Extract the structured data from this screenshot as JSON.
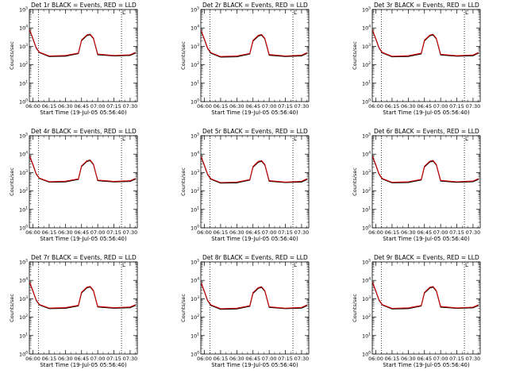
{
  "figure": {
    "x_tick_labels": [
      "06:00",
      "06:15",
      "06:30",
      "06:45",
      "07:00",
      "07:15",
      "07:30"
    ],
    "y_tick_exponents": [
      "0",
      "1",
      "2",
      "3",
      "4",
      "5"
    ],
    "y_tick_base": "10",
    "xlabel": "Start Time (19-Jul-05 05:56:40)",
    "ylabel": "Counts/sec",
    "colors": {
      "events": "#000000",
      "lld": "#d00000"
    }
  },
  "chart_data": [
    {
      "type": "line",
      "title": "Det 1r BLACK = Events, RED = LLD",
      "xlabel": "Start Time (19-Jul-05 05:56:40)",
      "ylabel": "Counts/sec",
      "y_log": true,
      "ylim": [
        1,
        100000
      ],
      "xlim": [
        "05:56:40",
        "07:36:40"
      ],
      "vlines": [
        "06:05",
        "07:22"
      ],
      "corner_mark": "L",
      "x": [
        "05:57",
        "06:00",
        "06:03",
        "06:06",
        "06:15",
        "06:30",
        "06:42",
        "06:45",
        "06:50",
        "06:53",
        "06:56",
        "07:00",
        "07:15",
        "07:30",
        "07:35"
      ],
      "series": [
        {
          "name": "Events",
          "values": [
            7000,
            2500,
            800,
            450,
            280,
            290,
            400,
            2000,
            3800,
            4200,
            2600,
            350,
            300,
            320,
            430
          ]
        },
        {
          "name": "LLD",
          "values": [
            7500,
            2700,
            850,
            480,
            300,
            320,
            430,
            2200,
            4200,
            4600,
            2800,
            380,
            320,
            350,
            470
          ]
        }
      ]
    },
    {
      "type": "line",
      "title": "Det 2r BLACK = Events, RED = LLD",
      "xlabel": "Start Time (19-Jul-05 05:56:40)",
      "ylabel": "Counts/sec",
      "y_log": true,
      "ylim": [
        1,
        100000
      ],
      "xlim": [
        "05:56:40",
        "07:36:40"
      ],
      "vlines": [
        "06:05",
        "07:22"
      ],
      "corner_mark": "L",
      "x": [
        "05:57",
        "06:00",
        "06:03",
        "06:06",
        "06:15",
        "06:30",
        "06:42",
        "06:45",
        "06:50",
        "06:53",
        "06:56",
        "07:00",
        "07:15",
        "07:30",
        "07:35"
      ],
      "series": [
        {
          "name": "Events",
          "values": [
            6500,
            2300,
            750,
            420,
            260,
            270,
            380,
            1900,
            3600,
            4000,
            2500,
            330,
            280,
            300,
            410
          ]
        },
        {
          "name": "LLD",
          "values": [
            7000,
            2500,
            800,
            450,
            280,
            300,
            410,
            2100,
            4000,
            4400,
            2700,
            360,
            300,
            330,
            450
          ]
        }
      ]
    },
    {
      "type": "line",
      "title": "Det 3r BLACK = Events, RED = LLD",
      "xlabel": "Start Time (19-Jul-05 05:56:40)",
      "ylabel": "Counts/sec",
      "y_log": true,
      "ylim": [
        1,
        100000
      ],
      "xlim": [
        "05:56:40",
        "07:36:40"
      ],
      "vlines": [
        "06:05",
        "07:22"
      ],
      "corner_mark": "L",
      "x": [
        "05:57",
        "06:00",
        "06:03",
        "06:06",
        "06:15",
        "06:30",
        "06:42",
        "06:45",
        "06:50",
        "06:53",
        "06:56",
        "07:00",
        "07:15",
        "07:30",
        "07:35"
      ],
      "series": [
        {
          "name": "Events",
          "values": [
            6800,
            2400,
            780,
            440,
            270,
            280,
            390,
            1950,
            3700,
            4100,
            2550,
            340,
            290,
            310,
            420
          ]
        },
        {
          "name": "LLD",
          "values": [
            7300,
            2600,
            830,
            470,
            290,
            310,
            420,
            2150,
            4100,
            4500,
            2750,
            370,
            310,
            340,
            460
          ]
        }
      ]
    },
    {
      "type": "line",
      "title": "Det 4r BLACK = Events, RED = LLD",
      "xlabel": "Start Time (19-Jul-05 05:56:40)",
      "ylabel": "Counts/sec",
      "y_log": true,
      "ylim": [
        1,
        100000
      ],
      "xlim": [
        "05:56:40",
        "07:36:40"
      ],
      "vlines": [
        "06:05",
        "07:22"
      ],
      "corner_mark": "L",
      "x": [
        "05:57",
        "06:00",
        "06:03",
        "06:06",
        "06:15",
        "06:30",
        "06:42",
        "06:45",
        "06:50",
        "06:53",
        "06:56",
        "07:00",
        "07:15",
        "07:30",
        "07:35"
      ],
      "series": [
        {
          "name": "Events",
          "values": [
            7200,
            2600,
            820,
            470,
            300,
            310,
            420,
            2100,
            4000,
            4400,
            2700,
            360,
            310,
            330,
            440
          ]
        },
        {
          "name": "LLD",
          "values": [
            7700,
            2800,
            870,
            500,
            320,
            340,
            450,
            2300,
            4400,
            4800,
            2900,
            390,
            330,
            360,
            480
          ]
        }
      ]
    },
    {
      "type": "line",
      "title": "Det 5r BLACK = Events, RED = LLD",
      "xlabel": "Start Time (19-Jul-05 05:56:40)",
      "ylabel": "Counts/sec",
      "y_log": true,
      "ylim": [
        1,
        100000
      ],
      "xlim": [
        "05:56:40",
        "07:36:40"
      ],
      "vlines": [
        "06:05",
        "07:22"
      ],
      "corner_mark": "L",
      "x": [
        "05:57",
        "06:00",
        "06:03",
        "06:06",
        "06:15",
        "06:30",
        "06:42",
        "06:45",
        "06:50",
        "06:53",
        "06:56",
        "07:00",
        "07:15",
        "07:30",
        "07:35"
      ],
      "series": [
        {
          "name": "Events",
          "values": [
            6600,
            2350,
            760,
            430,
            265,
            275,
            385,
            1920,
            3650,
            4050,
            2520,
            335,
            285,
            305,
            415
          ]
        },
        {
          "name": "LLD",
          "values": [
            7100,
            2550,
            810,
            460,
            285,
            305,
            415,
            2120,
            4050,
            4450,
            2720,
            365,
            305,
            335,
            455
          ]
        }
      ]
    },
    {
      "type": "line",
      "title": "Det 6r BLACK = Events, RED = LLD",
      "xlabel": "Start Time (19-Jul-05 05:56:40)",
      "ylabel": "Counts/sec",
      "y_log": true,
      "ylim": [
        1,
        100000
      ],
      "xlim": [
        "05:56:40",
        "07:36:40"
      ],
      "vlines": [
        "06:05",
        "07:22"
      ],
      "corner_mark": "L",
      "x": [
        "05:57",
        "06:00",
        "06:03",
        "06:06",
        "06:15",
        "06:30",
        "06:42",
        "06:45",
        "06:50",
        "06:53",
        "06:56",
        "07:00",
        "07:15",
        "07:30",
        "07:35"
      ],
      "series": [
        {
          "name": "Events",
          "values": [
            6900,
            2450,
            790,
            445,
            275,
            285,
            395,
            1980,
            3750,
            4150,
            2580,
            345,
            295,
            315,
            425
          ]
        },
        {
          "name": "LLD",
          "values": [
            7400,
            2650,
            840,
            475,
            295,
            315,
            425,
            2180,
            4150,
            4550,
            2780,
            375,
            315,
            345,
            465
          ]
        }
      ]
    },
    {
      "type": "line",
      "title": "Det 7r BLACK = Events, RED = LLD",
      "xlabel": "Start Time (19-Jul-05 05:56:40)",
      "ylabel": "Counts/sec",
      "y_log": true,
      "ylim": [
        1,
        100000
      ],
      "xlim": [
        "05:56:40",
        "07:36:40"
      ],
      "vlines": [
        "06:05",
        "07:22"
      ],
      "corner_mark": "L",
      "x": [
        "05:57",
        "06:00",
        "06:03",
        "06:06",
        "06:15",
        "06:30",
        "06:42",
        "06:45",
        "06:50",
        "06:53",
        "06:56",
        "07:00",
        "07:15",
        "07:30",
        "07:35"
      ],
      "series": [
        {
          "name": "Events",
          "values": [
            7100,
            2550,
            810,
            460,
            290,
            300,
            410,
            2050,
            3900,
            4300,
            2650,
            355,
            305,
            325,
            435
          ]
        },
        {
          "name": "LLD",
          "values": [
            7600,
            2750,
            860,
            490,
            310,
            330,
            440,
            2250,
            4300,
            4700,
            2850,
            385,
            325,
            355,
            475
          ]
        }
      ]
    },
    {
      "type": "line",
      "title": "Det 8r BLACK = Events, RED = LLD",
      "xlabel": "Start Time (19-Jul-05 05:56:40)",
      "ylabel": "Counts/sec",
      "y_log": true,
      "ylim": [
        1,
        100000
      ],
      "xlim": [
        "05:56:40",
        "07:36:40"
      ],
      "vlines": [
        "06:05",
        "07:22"
      ],
      "corner_mark": "L",
      "x": [
        "05:57",
        "06:00",
        "06:03",
        "06:06",
        "06:15",
        "06:30",
        "06:42",
        "06:45",
        "06:50",
        "06:53",
        "06:56",
        "07:00",
        "07:15",
        "07:30",
        "07:35"
      ],
      "series": [
        {
          "name": "Events",
          "values": [
            6700,
            2380,
            770,
            435,
            268,
            278,
            388,
            1940,
            3680,
            4080,
            2540,
            338,
            288,
            308,
            418
          ]
        },
        {
          "name": "LLD",
          "values": [
            7200,
            2580,
            820,
            465,
            288,
            308,
            418,
            2140,
            4080,
            4480,
            2740,
            368,
            308,
            338,
            458
          ]
        }
      ]
    },
    {
      "type": "line",
      "title": "Det 9r BLACK = Events, RED = LLD",
      "xlabel": "Start Time (19-Jul-05 05:56:40)",
      "ylabel": "Counts/sec",
      "y_log": true,
      "ylim": [
        1,
        100000
      ],
      "xlim": [
        "05:56:40",
        "07:36:40"
      ],
      "vlines": [
        "06:05",
        "07:22"
      ],
      "corner_mark": "L",
      "x": [
        "05:57",
        "06:00",
        "06:03",
        "06:06",
        "06:15",
        "06:30",
        "06:42",
        "06:45",
        "06:50",
        "06:53",
        "06:56",
        "07:00",
        "07:15",
        "07:30",
        "07:35"
      ],
      "series": [
        {
          "name": "Events",
          "values": [
            7000,
            2500,
            800,
            450,
            280,
            290,
            400,
            2000,
            3800,
            4200,
            2600,
            350,
            300,
            320,
            430
          ]
        },
        {
          "name": "LLD",
          "values": [
            7500,
            2700,
            850,
            480,
            300,
            320,
            430,
            2200,
            4200,
            4600,
            2800,
            380,
            320,
            350,
            470
          ]
        }
      ]
    }
  ]
}
